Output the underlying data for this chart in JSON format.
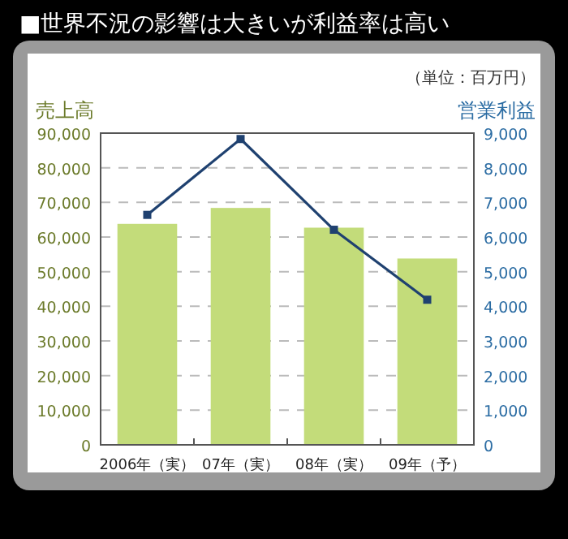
{
  "chart_data": {
    "type": "bar",
    "title": "■世界不況の影響は大きいが利益率は高い",
    "ylabel": "売上高",
    "y2label": "営業利益",
    "annotations": [
      "（単位：百万円）"
    ],
    "categories": [
      "2006年（実）",
      "07年（実）",
      "08年（実）",
      "09年（予）"
    ],
    "series": [
      {
        "color": "#c3dc7a",
        "values": [
          63800,
          68400,
          62700,
          53800
        ]
      },
      {
        "type": "line",
        "axis": "y2",
        "color": "#1f4170",
        "marker": "square",
        "values": [
          6640,
          8830,
          6210,
          4190
        ]
      }
    ],
    "ylim": [
      0,
      90000
    ],
    "yticks": [
      {
        "value": 0,
        "label": "0"
      },
      {
        "value": 10000,
        "label": "10,000"
      },
      {
        "value": 20000,
        "label": "20,000"
      },
      {
        "value": 30000,
        "label": "30,000"
      },
      {
        "value": 40000,
        "label": "40,000"
      },
      {
        "value": 50000,
        "label": "50,000"
      },
      {
        "value": 60000,
        "label": "60,000"
      },
      {
        "value": 70000,
        "label": "70,000"
      },
      {
        "value": 80000,
        "label": "80,000"
      },
      {
        "value": 90000,
        "label": "90,000"
      }
    ],
    "y2lim": [
      0,
      9000
    ],
    "y2ticks": [
      {
        "value": 0,
        "label": "0"
      },
      {
        "value": 1000,
        "label": "1,000"
      },
      {
        "value": 2000,
        "label": "2,000"
      },
      {
        "value": 3000,
        "label": "3,000"
      },
      {
        "value": 4000,
        "label": "4,000"
      },
      {
        "value": 5000,
        "label": "5,000"
      },
      {
        "value": 6000,
        "label": "6,000"
      },
      {
        "value": 7000,
        "label": "7,000"
      },
      {
        "value": 8000,
        "label": "8,000"
      },
      {
        "value": 9000,
        "label": "9,000"
      }
    ],
    "grid": "y"
  }
}
